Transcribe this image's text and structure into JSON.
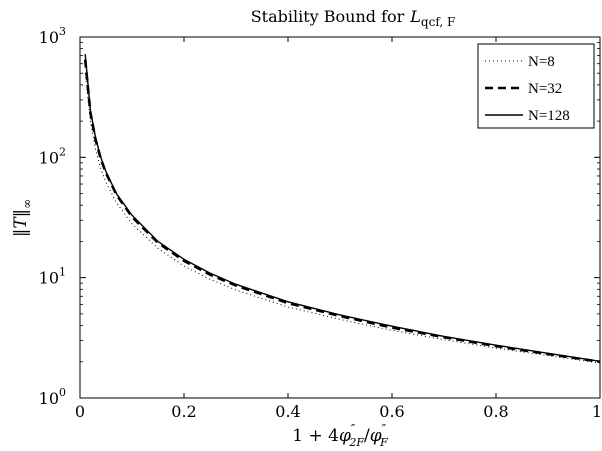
{
  "chart_data": {
    "type": "line",
    "title_prefix": "Stability Bound for",
    "title_symbol": "L",
    "title_subscript": "qcf, F",
    "xlabel_parts": [
      "1 + 4",
      "φ",
      "″",
      "2F",
      "/",
      "φ",
      "″",
      "F"
    ],
    "ylabel_parts": [
      "‖",
      "T",
      "‖",
      "∞"
    ],
    "xlim": [
      0,
      1
    ],
    "ylim": [
      1,
      1000
    ],
    "yscale": "log",
    "grid": false,
    "legend_position": "top-right",
    "x_ticks": [
      {
        "value": 0,
        "label": "0"
      },
      {
        "value": 0.2,
        "label": "0.2"
      },
      {
        "value": 0.4,
        "label": "0.4"
      },
      {
        "value": 0.6,
        "label": "0.6"
      },
      {
        "value": 0.8,
        "label": "0.8"
      },
      {
        "value": 1,
        "label": "1"
      }
    ],
    "y_ticks": [
      {
        "value": 1,
        "base": "10",
        "exp": "0"
      },
      {
        "value": 10,
        "base": "10",
        "exp": "1"
      },
      {
        "value": 100,
        "base": "10",
        "exp": "2"
      },
      {
        "value": 1000,
        "base": "10",
        "exp": "3"
      }
    ],
    "series": [
      {
        "name": "N=8",
        "style": "dotted",
        "points": [
          [
            0.01,
            500
          ],
          [
            0.02,
            200
          ],
          [
            0.03,
            115
          ],
          [
            0.04,
            80
          ],
          [
            0.05,
            62
          ],
          [
            0.07,
            42
          ],
          [
            0.1,
            28
          ],
          [
            0.15,
            17.5
          ],
          [
            0.2,
            12.5
          ],
          [
            0.25,
            9.7
          ],
          [
            0.3,
            7.9
          ],
          [
            0.4,
            5.7
          ],
          [
            0.5,
            4.5
          ],
          [
            0.6,
            3.65
          ],
          [
            0.7,
            3.05
          ],
          [
            0.8,
            2.6
          ],
          [
            0.9,
            2.25
          ],
          [
            1.0,
            1.95
          ]
        ]
      },
      {
        "name": "N=32",
        "style": "dashed",
        "points": [
          [
            0.01,
            650
          ],
          [
            0.02,
            235
          ],
          [
            0.03,
            140
          ],
          [
            0.04,
            97
          ],
          [
            0.05,
            74
          ],
          [
            0.07,
            49
          ],
          [
            0.1,
            32
          ],
          [
            0.15,
            19.5
          ],
          [
            0.2,
            13.8
          ],
          [
            0.25,
            10.6
          ],
          [
            0.3,
            8.6
          ],
          [
            0.4,
            6.15
          ],
          [
            0.5,
            4.8
          ],
          [
            0.6,
            3.85
          ],
          [
            0.7,
            3.2
          ],
          [
            0.8,
            2.7
          ],
          [
            0.9,
            2.32
          ],
          [
            1.0,
            2.0
          ]
        ]
      },
      {
        "name": "N=128",
        "style": "solid",
        "points": [
          [
            0.01,
            720
          ],
          [
            0.02,
            245
          ],
          [
            0.03,
            145
          ],
          [
            0.04,
            100
          ],
          [
            0.05,
            76
          ],
          [
            0.07,
            50
          ],
          [
            0.1,
            33
          ],
          [
            0.15,
            20
          ],
          [
            0.2,
            14.2
          ],
          [
            0.25,
            10.9
          ],
          [
            0.3,
            8.8
          ],
          [
            0.4,
            6.3
          ],
          [
            0.5,
            4.9
          ],
          [
            0.6,
            3.95
          ],
          [
            0.7,
            3.25
          ],
          [
            0.8,
            2.75
          ],
          [
            0.9,
            2.35
          ],
          [
            1.0,
            2.02
          ]
        ]
      }
    ]
  }
}
